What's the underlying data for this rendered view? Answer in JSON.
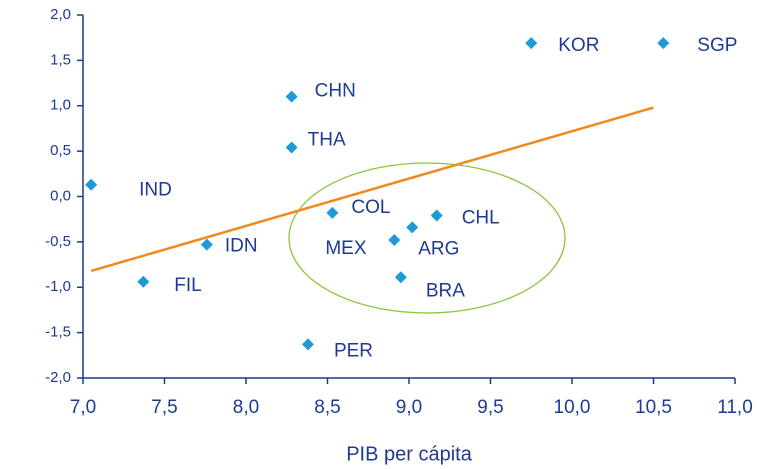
{
  "chart_data": {
    "type": "scatter",
    "x_label": "PIB per cápita",
    "labels": [
      "IND",
      "FIL",
      "IDN",
      "CHN",
      "THA",
      "COL",
      "PER",
      "MEX",
      "ARG",
      "CHL",
      "BRA",
      "KOR",
      "SGP"
    ],
    "x": [
      7.05,
      7.37,
      7.76,
      8.28,
      8.28,
      8.53,
      8.38,
      8.91,
      9.02,
      9.17,
      8.95,
      9.75,
      10.56
    ],
    "values": [
      0.13,
      -0.94,
      -0.53,
      1.1,
      0.54,
      -0.18,
      -1.63,
      -0.48,
      -0.34,
      -0.21,
      -0.89,
      1.69,
      1.69
    ],
    "color": "#1e9ad6",
    "trendline": {
      "x": [
        7.05,
        10.5
      ],
      "values": [
        -0.82,
        0.98
      ],
      "color": "#f08a1e"
    },
    "xlim": [
      7.0,
      11.0
    ],
    "ylim": [
      -2.0,
      2.0
    ],
    "xticks": [
      {
        "value": 7.0,
        "label": "7,0"
      },
      {
        "value": 7.5,
        "label": "7,5"
      },
      {
        "value": 8.0,
        "label": "8,0"
      },
      {
        "value": 8.5,
        "label": "8,5"
      },
      {
        "value": 9.0,
        "label": "9,0"
      },
      {
        "value": 9.5,
        "label": "9,5"
      },
      {
        "value": 10.0,
        "label": "10,0"
      },
      {
        "value": 10.5,
        "label": "10,5"
      },
      {
        "value": 11.0,
        "label": "11,0"
      }
    ],
    "yticks": [
      {
        "value": 2.0,
        "label": "2,0"
      },
      {
        "value": 1.5,
        "label": "1,5"
      },
      {
        "value": 1.0,
        "label": "1,0"
      },
      {
        "value": 0.5,
        "label": "0,5"
      },
      {
        "value": 0.0,
        "label": "0,0"
      },
      {
        "value": -0.5,
        "label": "-0,5"
      },
      {
        "value": -1.0,
        "label": "-1,0"
      },
      {
        "value": -1.5,
        "label": "-1,5"
      },
      {
        "value": -2.0,
        "label": "-2,0"
      }
    ]
  }
}
